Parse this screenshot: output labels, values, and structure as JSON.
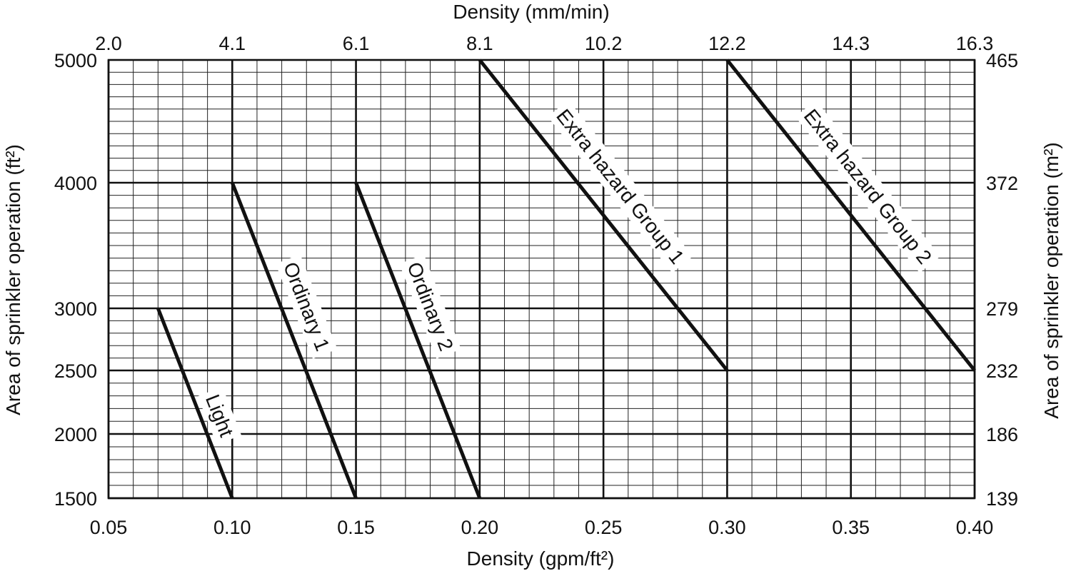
{
  "chart_data": {
    "type": "line",
    "x_bottom": {
      "label": "Density (gpm/ft²)",
      "range": [
        0.05,
        0.4
      ],
      "ticks": [
        "0.05",
        "0.10",
        "0.15",
        "0.20",
        "0.25",
        "0.30",
        "0.35",
        "0.40"
      ]
    },
    "x_top": {
      "label": "Density (mm/min)",
      "ticks": [
        "2.0",
        "4.1",
        "6.1",
        "8.1",
        "10.2",
        "12.2",
        "14.3",
        "16.3"
      ]
    },
    "y_left": {
      "label": "Area of sprinkler operation (ft²)",
      "range": [
        1500,
        5000
      ],
      "ticks": [
        "1500",
        "2000",
        "2500",
        "3000",
        "4000",
        "5000"
      ]
    },
    "y_right": {
      "label": "Area of sprinkler operation (m²)",
      "ticks": [
        "139",
        "186",
        "232",
        "279",
        "372",
        "465"
      ]
    },
    "grid": true,
    "series": [
      {
        "name": "Light",
        "points": [
          [
            0.07,
            3000
          ],
          [
            0.1,
            1500
          ]
        ]
      },
      {
        "name": "Ordinary 1",
        "points": [
          [
            0.1,
            4000
          ],
          [
            0.15,
            1500
          ]
        ]
      },
      {
        "name": "Ordinary 2",
        "points": [
          [
            0.15,
            4000
          ],
          [
            0.2,
            1500
          ]
        ]
      },
      {
        "name": "Extra hazard Group 1",
        "points": [
          [
            0.2,
            5000
          ],
          [
            0.3,
            2500
          ]
        ]
      },
      {
        "name": "Extra hazard Group 2",
        "points": [
          [
            0.3,
            5000
          ],
          [
            0.4,
            2500
          ]
        ]
      }
    ]
  }
}
